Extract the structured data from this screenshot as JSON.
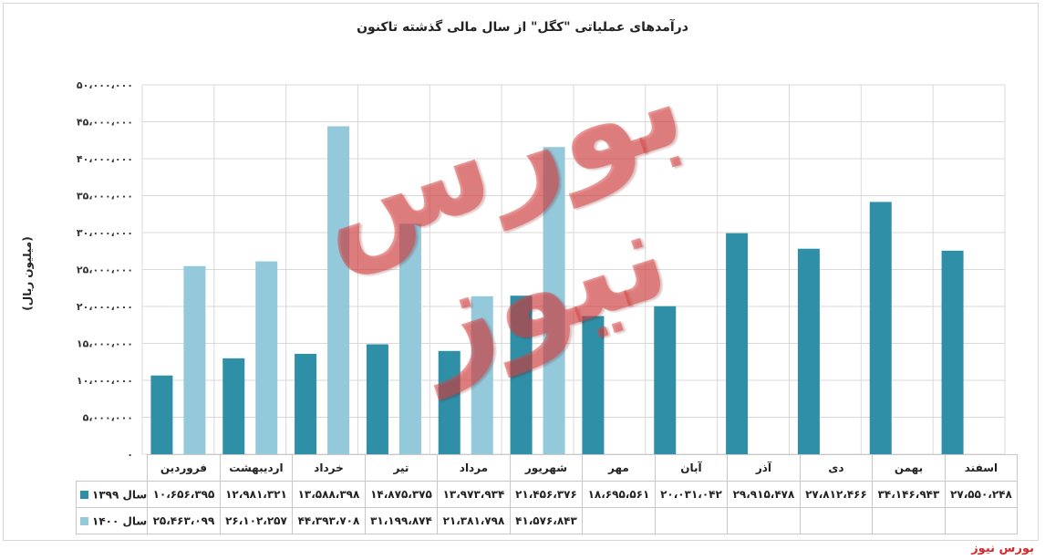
{
  "chart_data": {
    "type": "bar",
    "title": "درآمدهای عملیاتی \"کگل\" از سال مالی گذشته تاکنون",
    "ylabel": "(میلیون ریال)",
    "xlabel": "",
    "ylim": [
      0,
      50000000
    ],
    "yticks": [
      0,
      5000000,
      10000000,
      15000000,
      20000000,
      25000000,
      30000000,
      35000000,
      40000000,
      45000000,
      50000000
    ],
    "ytick_labels": [
      "۰",
      "۵،۰۰۰،۰۰۰",
      "۱۰،۰۰۰،۰۰۰",
      "۱۵،۰۰۰،۰۰۰",
      "۲۰،۰۰۰،۰۰۰",
      "۲۵،۰۰۰،۰۰۰",
      "۳۰،۰۰۰،۰۰۰",
      "۳۵،۰۰۰،۰۰۰",
      "۴۰،۰۰۰،۰۰۰",
      "۴۵،۰۰۰،۰۰۰",
      "۵۰،۰۰۰،۰۰۰"
    ],
    "grid": true,
    "legend": "table",
    "categories": [
      "فروردین",
      "اردیبهشت",
      "خرداد",
      "تیر",
      "مرداد",
      "شهریور",
      "مهر",
      "آبان",
      "آذر",
      "دی",
      "بهمن",
      "اسفند"
    ],
    "series": [
      {
        "name": "سال ۱۳۹۹",
        "color": "#2e8fa6",
        "values": [
          10656395,
          12981321,
          13588398,
          14875375,
          13973934,
          21456376,
          18695561,
          20031042,
          29915478,
          27812466,
          34146943,
          27550248
        ],
        "labels": [
          "۱۰،۶۵۶،۳۹۵",
          "۱۲،۹۸۱،۳۲۱",
          "۱۳،۵۸۸،۳۹۸",
          "۱۴،۸۷۵،۳۷۵",
          "۱۳،۹۷۳،۹۳۴",
          "۲۱،۴۵۶،۳۷۶",
          "۱۸،۶۹۵،۵۶۱",
          "۲۰،۰۳۱،۰۴۲",
          "۲۹،۹۱۵،۴۷۸",
          "۲۷،۸۱۲،۴۶۶",
          "۳۴،۱۴۶،۹۴۳",
          "۲۷،۵۵۰،۲۴۸"
        ]
      },
      {
        "name": "سال ۱۴۰۰",
        "color": "#93c9db",
        "values": [
          25463099,
          26102257,
          44393708,
          31199874,
          21381798,
          41576843,
          null,
          null,
          null,
          null,
          null,
          null
        ],
        "labels": [
          "۲۵،۴۶۳،۰۹۹",
          "۲۶،۱۰۲،۲۵۷",
          "۴۴،۳۹۳،۷۰۸",
          "۳۱،۱۹۹،۸۷۴",
          "۲۱،۳۸۱،۷۹۸",
          "۴۱،۵۷۶،۸۴۳",
          "",
          "",
          "",
          "",
          "",
          ""
        ]
      }
    ]
  },
  "watermark": "بورس نیوز",
  "source_label": "بورس نیوز"
}
